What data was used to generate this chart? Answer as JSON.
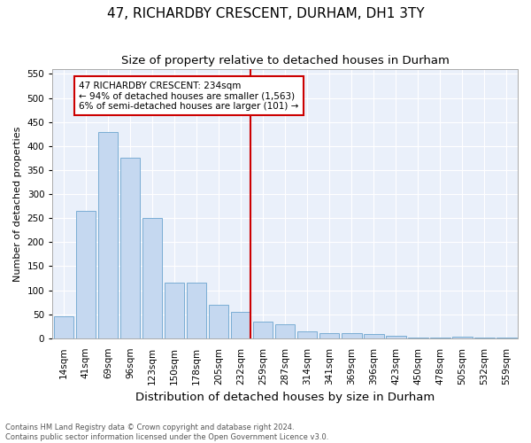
{
  "title": "47, RICHARDBY CRESCENT, DURHAM, DH1 3TY",
  "subtitle": "Size of property relative to detached houses in Durham",
  "xlabel": "Distribution of detached houses by size in Durham",
  "ylabel": "Number of detached properties",
  "bin_labels": [
    "14sqm",
    "41sqm",
    "69sqm",
    "96sqm",
    "123sqm",
    "150sqm",
    "178sqm",
    "205sqm",
    "232sqm",
    "259sqm",
    "287sqm",
    "314sqm",
    "341sqm",
    "369sqm",
    "396sqm",
    "423sqm",
    "450sqm",
    "478sqm",
    "505sqm",
    "532sqm",
    "559sqm"
  ],
  "bar_heights": [
    45,
    265,
    430,
    375,
    250,
    115,
    115,
    70,
    55,
    35,
    30,
    15,
    10,
    10,
    8,
    5,
    1,
    2,
    4,
    1,
    2
  ],
  "bar_color": "#c5d8f0",
  "bar_edge_color": "#7aadd4",
  "vline_x_idx": 8,
  "vline_color": "#cc0000",
  "annotation_line1": "47 RICHARDBY CRESCENT: 234sqm",
  "annotation_line2": "← 94% of detached houses are smaller (1,563)",
  "annotation_line3": "6% of semi-detached houses are larger (101) →",
  "annotation_box_color": "#cc0000",
  "annotation_box_bg": "#ffffff",
  "ylim": [
    0,
    560
  ],
  "yticks": [
    0,
    50,
    100,
    150,
    200,
    250,
    300,
    350,
    400,
    450,
    500,
    550
  ],
  "bg_color": "#eaf0fa",
  "footer_line1": "Contains HM Land Registry data © Crown copyright and database right 2024.",
  "footer_line2": "Contains public sector information licensed under the Open Government Licence v3.0.",
  "title_fontsize": 11,
  "subtitle_fontsize": 9.5,
  "xlabel_fontsize": 9.5,
  "ylabel_fontsize": 8,
  "tick_fontsize": 7.5,
  "annotation_fontsize": 7.5
}
